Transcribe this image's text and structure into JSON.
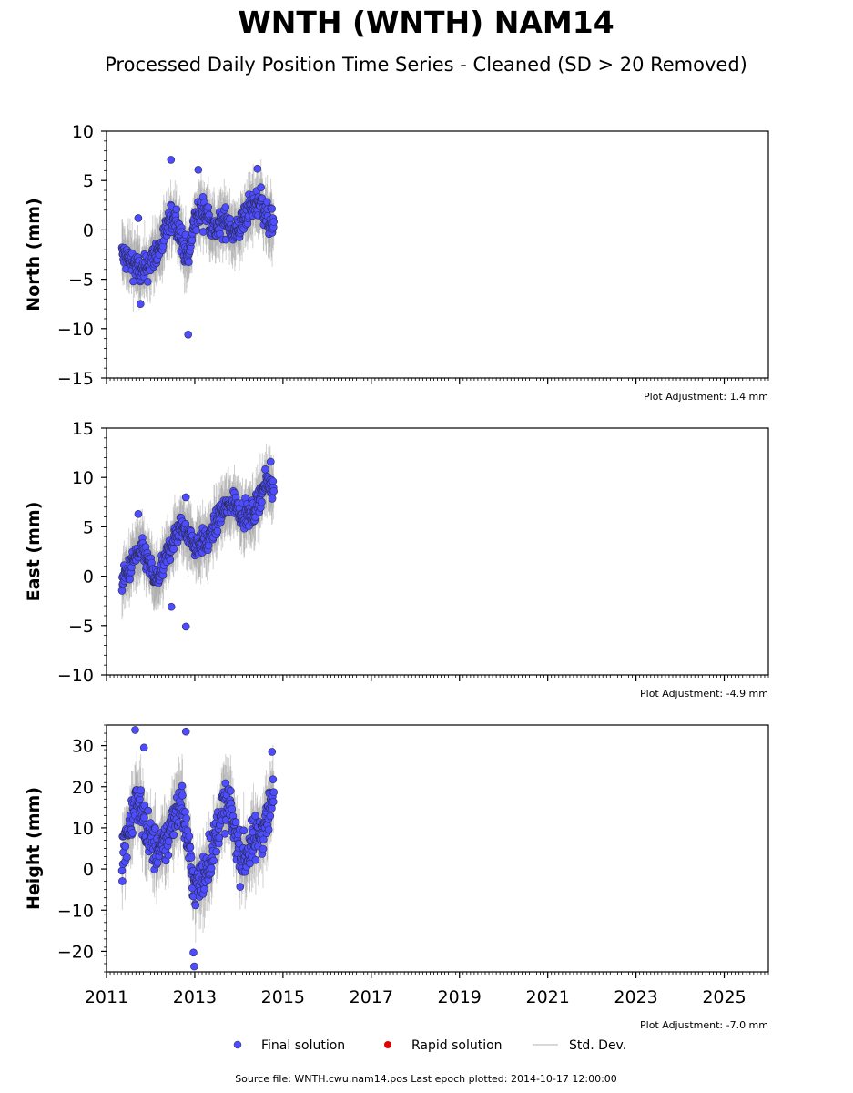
{
  "title": "WNTH (WNTH) NAM14",
  "subtitle": "Processed Daily Position Time Series - Cleaned (SD > 20 Removed)",
  "source_note": "Source file: WNTH.cwu.nam14.pos  Last epoch plotted: 2014-10-17 12:00:00",
  "legend": [
    {
      "label": "Final solution",
      "color": "#4d4dff"
    },
    {
      "label": "Rapid solution",
      "color": "#e00000"
    },
    {
      "label": "Std. Dev.",
      "color": "#cccccc"
    }
  ],
  "chart_data": {
    "type": "scatter",
    "x_range": [
      2011,
      2026
    ],
    "x_ticks": [
      "2011",
      "2013",
      "2015",
      "2017",
      "2019",
      "2021",
      "2023",
      "2025"
    ],
    "data_span": [
      "2011.35",
      "2014.79"
    ],
    "panels": [
      {
        "key": "north",
        "ylabel": "North (mm)",
        "ylim": [
          -15,
          10
        ],
        "yticks": [
          "10",
          "5",
          "0",
          "−5",
          "−10",
          "−15"
        ],
        "adjustment": "Plot Adjustment: 1.4 mm",
        "series": [
          {
            "x": 2011.35,
            "y": -2.5
          },
          {
            "x": 2011.5,
            "y": -3.0
          },
          {
            "x": 2011.65,
            "y": -3.5
          },
          {
            "x": 2011.8,
            "y": -4.5
          },
          {
            "x": 2011.95,
            "y": -3.5
          },
          {
            "x": 2012.1,
            "y": -2.5
          },
          {
            "x": 2012.25,
            "y": -1.5
          },
          {
            "x": 2012.4,
            "y": 0.5
          },
          {
            "x": 2012.55,
            "y": 1.5
          },
          {
            "x": 2012.7,
            "y": -1.0
          },
          {
            "x": 2012.85,
            "y": -3.0
          },
          {
            "x": 2013.0,
            "y": 1.0
          },
          {
            "x": 2013.15,
            "y": 2.0
          },
          {
            "x": 2013.3,
            "y": 1.5
          },
          {
            "x": 2013.45,
            "y": 0.0
          },
          {
            "x": 2013.6,
            "y": 0.5
          },
          {
            "x": 2013.75,
            "y": 1.0
          },
          {
            "x": 2013.9,
            "y": -0.5
          },
          {
            "x": 2014.05,
            "y": 0.5
          },
          {
            "x": 2014.2,
            "y": 2.0
          },
          {
            "x": 2014.35,
            "y": 2.5
          },
          {
            "x": 2014.5,
            "y": 3.0
          },
          {
            "x": 2014.65,
            "y": 1.0
          },
          {
            "x": 2014.79,
            "y": 0.5
          }
        ],
        "outliers": [
          {
            "x": 2012.46,
            "y": 7.1
          },
          {
            "x": 2012.85,
            "y": -10.6
          },
          {
            "x": 2013.08,
            "y": 6.1
          },
          {
            "x": 2014.42,
            "y": 6.2
          },
          {
            "x": 2011.77,
            "y": -7.5
          },
          {
            "x": 2011.72,
            "y": 1.2
          }
        ]
      },
      {
        "key": "east",
        "ylabel": "East (mm)",
        "ylim": [
          -10,
          15
        ],
        "yticks": [
          "15",
          "10",
          "5",
          "0",
          "−5",
          "−10"
        ],
        "adjustment": "Plot Adjustment: -4.9 mm",
        "series": [
          {
            "x": 2011.35,
            "y": -0.5
          },
          {
            "x": 2011.5,
            "y": 0.5
          },
          {
            "x": 2011.65,
            "y": 2.0
          },
          {
            "x": 2011.8,
            "y": 2.5
          },
          {
            "x": 2011.95,
            "y": 1.5
          },
          {
            "x": 2012.1,
            "y": -0.5
          },
          {
            "x": 2012.25,
            "y": 0.5
          },
          {
            "x": 2012.4,
            "y": 2.5
          },
          {
            "x": 2012.55,
            "y": 4.0
          },
          {
            "x": 2012.7,
            "y": 5.0
          },
          {
            "x": 2012.85,
            "y": 4.5
          },
          {
            "x": 2013.0,
            "y": 3.0
          },
          {
            "x": 2013.15,
            "y": 3.5
          },
          {
            "x": 2013.3,
            "y": 3.5
          },
          {
            "x": 2013.45,
            "y": 5.0
          },
          {
            "x": 2013.6,
            "y": 6.5
          },
          {
            "x": 2013.75,
            "y": 7.0
          },
          {
            "x": 2013.9,
            "y": 7.5
          },
          {
            "x": 2014.05,
            "y": 6.5
          },
          {
            "x": 2014.2,
            "y": 6.0
          },
          {
            "x": 2014.35,
            "y": 6.5
          },
          {
            "x": 2014.5,
            "y": 8.5
          },
          {
            "x": 2014.65,
            "y": 9.5
          },
          {
            "x": 2014.79,
            "y": 9.0
          }
        ],
        "outliers": [
          {
            "x": 2012.8,
            "y": -5.1
          },
          {
            "x": 2012.47,
            "y": -3.1
          },
          {
            "x": 2011.72,
            "y": 6.3
          },
          {
            "x": 2014.72,
            "y": 11.6
          },
          {
            "x": 2012.8,
            "y": 8.0
          }
        ]
      },
      {
        "key": "height",
        "ylabel": "Height (mm)",
        "ylim": [
          -25,
          35
        ],
        "yticks": [
          "30",
          "20",
          "10",
          "0",
          "−10",
          "−20"
        ],
        "adjustment": "Plot Adjustment: -7.0 mm",
        "series": [
          {
            "x": 2011.35,
            "y": 3.0
          },
          {
            "x": 2011.5,
            "y": 10.0
          },
          {
            "x": 2011.65,
            "y": 16.0
          },
          {
            "x": 2011.8,
            "y": 14.0
          },
          {
            "x": 2011.95,
            "y": 8.0
          },
          {
            "x": 2012.1,
            "y": 5.0
          },
          {
            "x": 2012.25,
            "y": 4.0
          },
          {
            "x": 2012.4,
            "y": 8.0
          },
          {
            "x": 2012.55,
            "y": 14.0
          },
          {
            "x": 2012.7,
            "y": 16.0
          },
          {
            "x": 2012.85,
            "y": 6.0
          },
          {
            "x": 2013.0,
            "y": -5.0
          },
          {
            "x": 2013.15,
            "y": -3.0
          },
          {
            "x": 2013.3,
            "y": 2.0
          },
          {
            "x": 2013.45,
            "y": 6.0
          },
          {
            "x": 2013.6,
            "y": 14.0
          },
          {
            "x": 2013.75,
            "y": 16.0
          },
          {
            "x": 2013.9,
            "y": 10.0
          },
          {
            "x": 2014.05,
            "y": 2.0
          },
          {
            "x": 2014.2,
            "y": 4.0
          },
          {
            "x": 2014.35,
            "y": 7.0
          },
          {
            "x": 2014.5,
            "y": 9.0
          },
          {
            "x": 2014.65,
            "y": 13.0
          },
          {
            "x": 2014.79,
            "y": 18.0
          }
        ],
        "outliers": [
          {
            "x": 2011.65,
            "y": 33.8
          },
          {
            "x": 2012.8,
            "y": 33.4
          },
          {
            "x": 2012.99,
            "y": -23.7
          },
          {
            "x": 2012.97,
            "y": -20.3
          },
          {
            "x": 2014.75,
            "y": 28.5
          },
          {
            "x": 2011.85,
            "y": 29.5
          }
        ]
      }
    ]
  }
}
